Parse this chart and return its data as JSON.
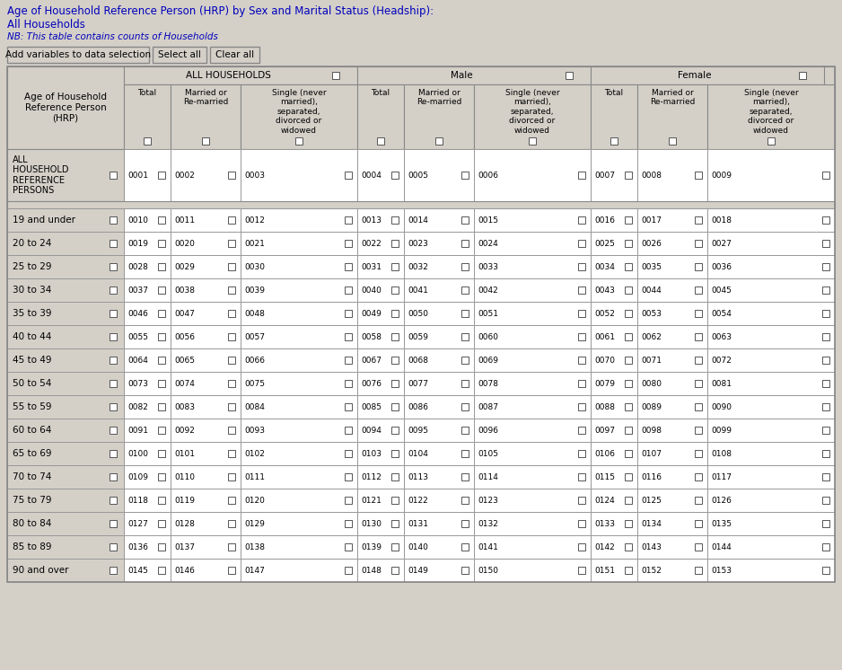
{
  "title": "Age of Household Reference Person (HRP) by Sex and Marital Status (Headship):",
  "subtitle": "All Households",
  "note": "NB: This table contains counts of Households",
  "btn1": "Add variables to data selection",
  "btn2": "Select all",
  "btn3": "Clear all",
  "bg_color": "#d4d0c8",
  "title_color": "#0000bb",
  "note_color": "#0000bb",
  "codes": [
    [
      "0001",
      "0002",
      "0003",
      "0004",
      "0005",
      "0006",
      "0007",
      "0008",
      "0009"
    ],
    [
      "0010",
      "0011",
      "0012",
      "0013",
      "0014",
      "0015",
      "0016",
      "0017",
      "0018"
    ],
    [
      "0019",
      "0020",
      "0021",
      "0022",
      "0023",
      "0024",
      "0025",
      "0026",
      "0027"
    ],
    [
      "0028",
      "0029",
      "0030",
      "0031",
      "0032",
      "0033",
      "0034",
      "0035",
      "0036"
    ],
    [
      "0037",
      "0038",
      "0039",
      "0040",
      "0041",
      "0042",
      "0043",
      "0044",
      "0045"
    ],
    [
      "0046",
      "0047",
      "0048",
      "0049",
      "0050",
      "0051",
      "0052",
      "0053",
      "0054"
    ],
    [
      "0055",
      "0056",
      "0057",
      "0058",
      "0059",
      "0060",
      "0061",
      "0062",
      "0063"
    ],
    [
      "0064",
      "0065",
      "0066",
      "0067",
      "0068",
      "0069",
      "0070",
      "0071",
      "0072"
    ],
    [
      "0073",
      "0074",
      "0075",
      "0076",
      "0077",
      "0078",
      "0079",
      "0080",
      "0081"
    ],
    [
      "0082",
      "0083",
      "0084",
      "0085",
      "0086",
      "0087",
      "0088",
      "0089",
      "0090"
    ],
    [
      "0091",
      "0092",
      "0093",
      "0094",
      "0095",
      "0096",
      "0097",
      "0098",
      "0099"
    ],
    [
      "0100",
      "0101",
      "0102",
      "0103",
      "0104",
      "0105",
      "0106",
      "0107",
      "0108"
    ],
    [
      "0109",
      "0110",
      "0111",
      "0112",
      "0113",
      "0114",
      "0115",
      "0116",
      "0117"
    ],
    [
      "0118",
      "0119",
      "0120",
      "0121",
      "0122",
      "0123",
      "0124",
      "0125",
      "0126"
    ],
    [
      "0127",
      "0128",
      "0129",
      "0130",
      "0131",
      "0132",
      "0133",
      "0134",
      "0135"
    ],
    [
      "0136",
      "0137",
      "0138",
      "0139",
      "0140",
      "0141",
      "0142",
      "0143",
      "0144"
    ],
    [
      "0145",
      "0146",
      "0147",
      "0148",
      "0149",
      "0150",
      "0151",
      "0152",
      "0153"
    ]
  ],
  "row_labels": [
    "19 and under",
    "20 to 24",
    "25 to 29",
    "30 to 34",
    "35 to 39",
    "40 to 44",
    "45 to 49",
    "50 to 54",
    "55 to 59",
    "60 to 64",
    "65 to 69",
    "70 to 74",
    "75 to 79",
    "80 to 84",
    "85 to 89",
    "90 and over"
  ]
}
